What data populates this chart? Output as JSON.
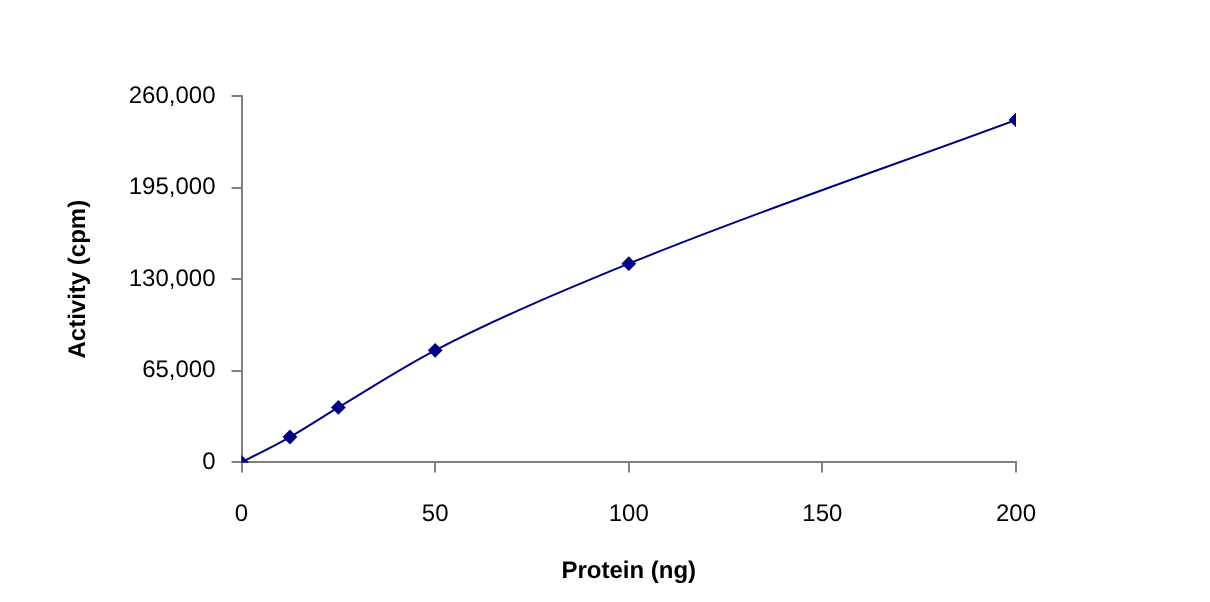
{
  "chart_data": {
    "type": "line",
    "xlabel": "Protein (ng)",
    "ylabel": "Activity (cpm)",
    "x": [
      0,
      12.5,
      25,
      50,
      100,
      200
    ],
    "series": [
      {
        "color": "#000080",
        "values": [
          0,
          18000,
          39000,
          79500,
          141000,
          243000
        ]
      }
    ],
    "xlim": [
      0,
      200
    ],
    "xticks": [
      0,
      50,
      100,
      150,
      200
    ],
    "ylim": [
      0,
      260000
    ],
    "yticks": [
      {
        "value": 0,
        "label": "0"
      },
      {
        "value": 65000,
        "label": "65,000"
      },
      {
        "value": 130000,
        "label": "130,000"
      },
      {
        "value": 195000,
        "label": "195,000"
      },
      {
        "value": 260000,
        "label": "260,000"
      }
    ],
    "grid": false,
    "legend": false,
    "marker": "diamond",
    "line_style": "solid"
  }
}
